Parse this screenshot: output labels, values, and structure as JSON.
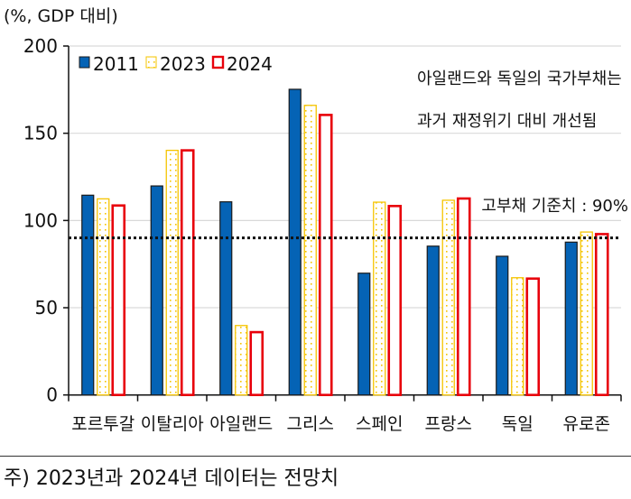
{
  "chart_data": {
    "type": "bar",
    "unit_label": "(%, GDP 대비)",
    "categories": [
      "포르투갈",
      "이탈리아",
      "아일랜드",
      "그리스",
      "스페인",
      "프랑스",
      "독일",
      "유로존"
    ],
    "series": [
      {
        "name": "2011",
        "color": "#0563B5",
        "values": [
          114.5,
          119.8,
          110.7,
          175.2,
          69.8,
          85.3,
          79.5,
          87.6
        ]
      },
      {
        "name": "2023",
        "color": "#F5C400",
        "values": [
          112.4,
          140.2,
          39.8,
          166.0,
          110.5,
          111.6,
          67.2,
          93.4
        ]
      },
      {
        "name": "2024",
        "color": "#E8000B",
        "values": [
          108.6,
          140.2,
          36.0,
          160.5,
          108.3,
          112.6,
          66.7,
          92.2
        ]
      }
    ],
    "ylim": [
      0,
      200
    ],
    "yticks": [
      0,
      50,
      100,
      150,
      200
    ],
    "grid": true,
    "legend_position": "top-left",
    "reference_line": {
      "value": 90,
      "label": "고부채 기준치 : 90%"
    },
    "annotation": [
      "아일랜드와 독일의 국가부채는",
      "과거 재정위기 대비 개선됨"
    ]
  },
  "footnote": "주) 2023년과 2024년 데이터는 전망치"
}
